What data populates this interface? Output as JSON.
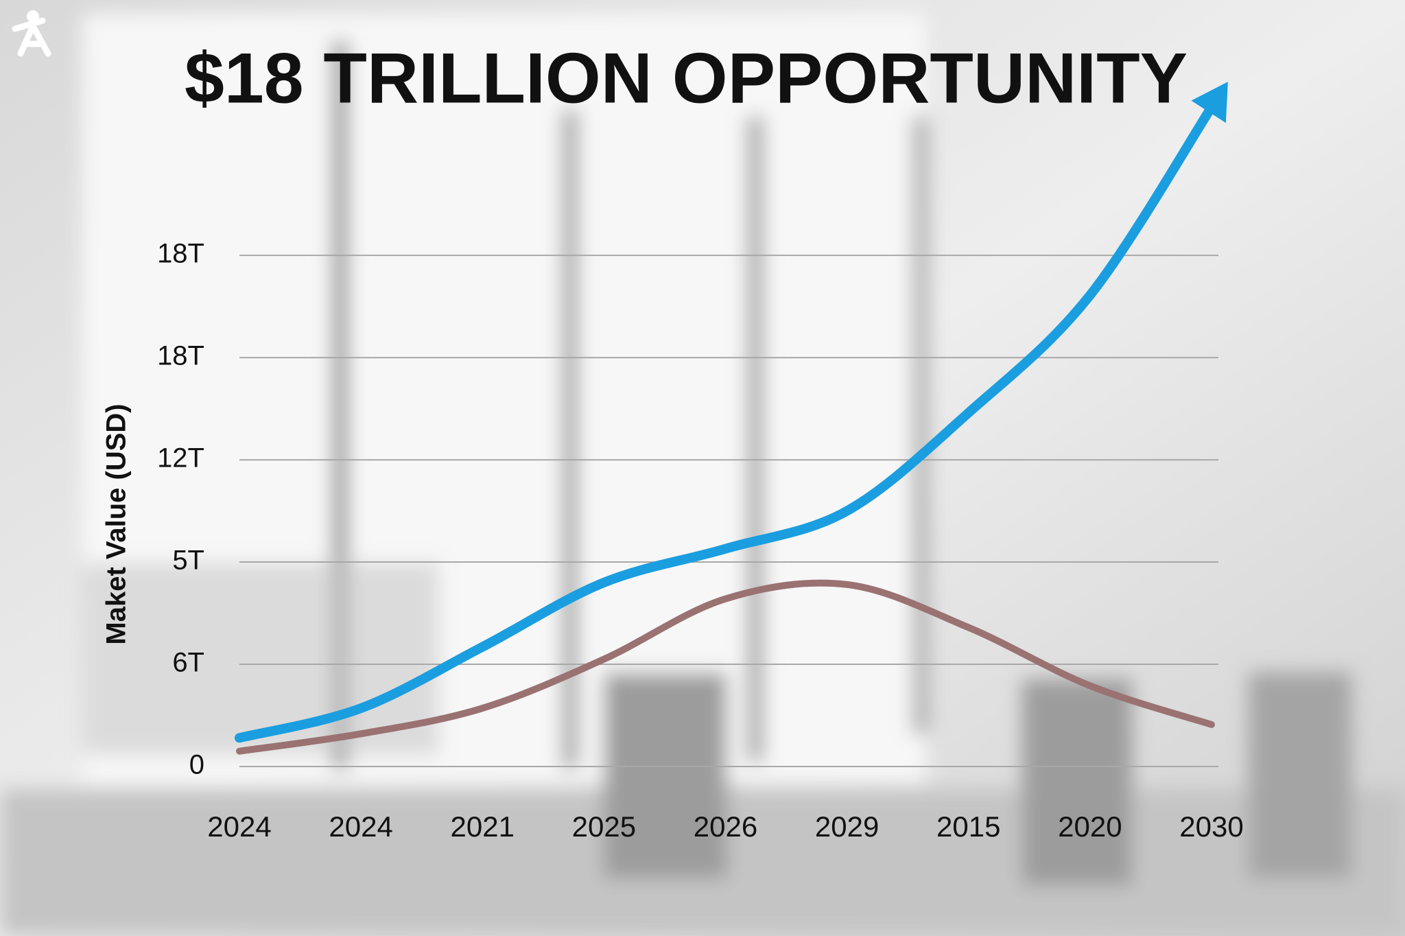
{
  "chart_data": {
    "type": "line",
    "title": "$18 TRILLION OPPORTUNITY",
    "y_label": "Maket Value (USD)",
    "categories": [
      "2024",
      "2024",
      "2021",
      "2025",
      "2026",
      "2029",
      "2015",
      "2020",
      "2030"
    ],
    "series": [
      {
        "color": "#1a9ee0",
        "values": [
          0.28,
          0.57,
          1.17,
          1.8,
          2.13,
          2.5,
          3.46,
          4.61,
          6.45
        ]
      },
      {
        "color": "#9a7272",
        "values": [
          0.15,
          0.32,
          0.57,
          1.05,
          1.64,
          1.78,
          1.36,
          0.79,
          0.41
        ]
      }
    ],
    "ylim": [
      0,
      6.8
    ],
    "yticks": [
      {
        "value": 0,
        "label": "0"
      },
      {
        "value": 1,
        "label": "6T"
      },
      {
        "value": 2,
        "label": "5T"
      },
      {
        "value": 3,
        "label": "12T"
      },
      {
        "value": 4,
        "label": "18T"
      },
      {
        "value": 5,
        "label": "18T"
      }
    ],
    "grid": true
  }
}
